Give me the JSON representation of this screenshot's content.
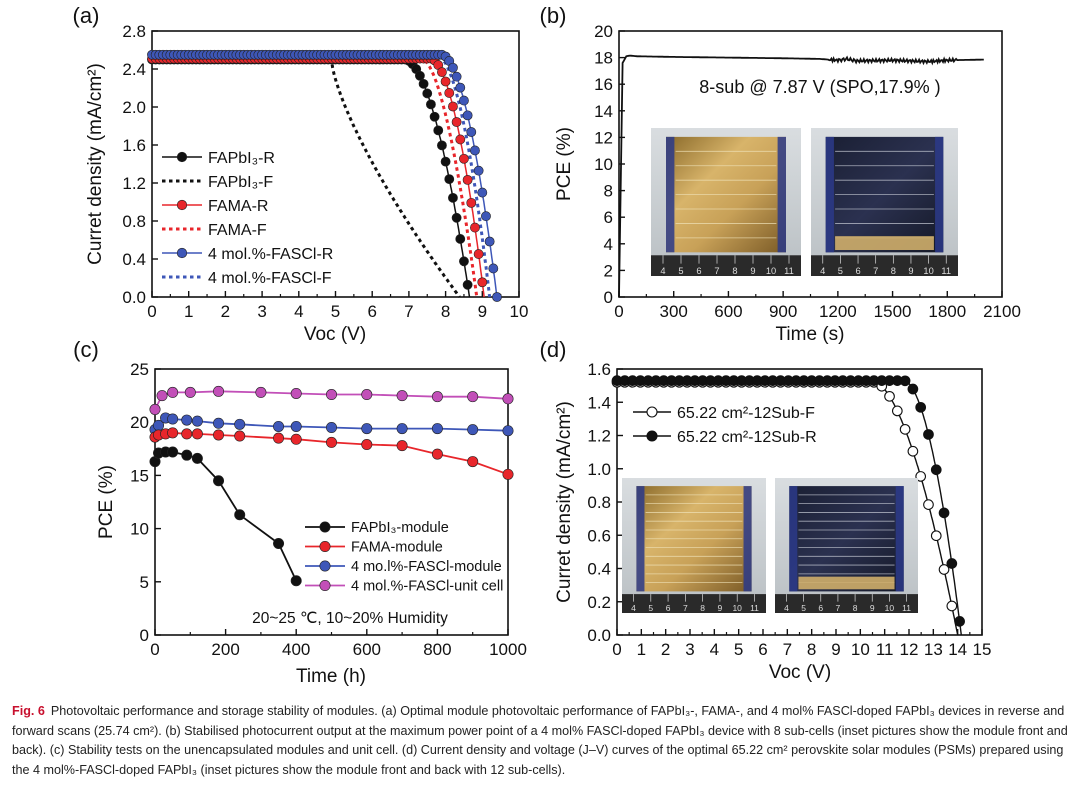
{
  "colors": {
    "black": "#111111",
    "red": "#e8262b",
    "blue": "#3e57b8",
    "magenta": "#c24fb8",
    "caption_label": "#c8102e"
  },
  "chart_data": [
    {
      "panel_label": "(a)",
      "type": "line",
      "xlabel": "Voc (V)",
      "ylabel": "Curret density (mA/cm²)",
      "xlim": [
        0,
        10
      ],
      "ylim": [
        0,
        2.8
      ],
      "xticks": [
        "0",
        "1",
        "2",
        "3",
        "4",
        "5",
        "6",
        "7",
        "8",
        "9",
        "10"
      ],
      "yticks": [
        "0.0",
        "0.4",
        "0.8",
        "1.2",
        "1.6",
        "2.0",
        "2.4",
        "2.8"
      ],
      "legend_position": "center-left",
      "series": [
        {
          "name": "FAPbI₃-R",
          "color": "black",
          "style": "line-marker",
          "Jsc": 2.5,
          "Voc": 8.65,
          "vk": 6.9,
          "n": 0.55
        },
        {
          "name": "FAPbI₃-F",
          "color": "black",
          "style": "dotted",
          "Jsc": 2.47,
          "Voc": 8.38,
          "vk": 4.9,
          "n": 1.35
        },
        {
          "name": "FAMA-R",
          "color": "red",
          "style": "line-marker",
          "Jsc": 2.51,
          "Voc": 9.05,
          "vk": 7.6,
          "n": 0.55
        },
        {
          "name": "FAMA-F",
          "color": "red",
          "style": "dotted",
          "Jsc": 2.49,
          "Voc": 8.85,
          "vk": 7.4,
          "n": 0.6
        },
        {
          "name": "4 mol.%-FASCl-R",
          "color": "blue",
          "style": "line-marker",
          "Jsc": 2.55,
          "Voc": 9.4,
          "vk": 7.9,
          "n": 0.55
        },
        {
          "name": "4 mol.%-FASCl-F",
          "color": "blue",
          "style": "dotted",
          "Jsc": 2.53,
          "Voc": 9.2,
          "vk": 7.8,
          "n": 0.55
        }
      ]
    },
    {
      "panel_label": "(b)",
      "type": "line",
      "xlabel": "Time (s)",
      "ylabel": "PCE (%)",
      "xlim": [
        0,
        2100
      ],
      "ylim": [
        0,
        20
      ],
      "xticks": [
        "0",
        "300",
        "600",
        "900",
        "1200",
        "1500",
        "1800",
        "2100"
      ],
      "yticks": [
        "0",
        "2",
        "4",
        "6",
        "8",
        "10",
        "12",
        "14",
        "16",
        "18",
        "20"
      ],
      "annotation": "8-sub @ 7.87 V (SPO,17.9% )",
      "series": [
        {
          "color": "black",
          "x": [
            0,
            20,
            40,
            60,
            100,
            300,
            600,
            900,
            1100,
            1200,
            1250,
            1300,
            1500,
            1700,
            1800,
            2000
          ],
          "values": [
            0,
            17.6,
            18.1,
            18.15,
            18.1,
            18.05,
            18.0,
            17.95,
            17.9,
            17.8,
            17.9,
            17.75,
            17.8,
            17.7,
            17.8,
            17.85
          ]
        }
      ]
    },
    {
      "panel_label": "(c)",
      "type": "line",
      "xlabel": "Time (h)",
      "ylabel": "PCE (%)",
      "xlim": [
        0,
        1000
      ],
      "ylim": [
        0,
        25
      ],
      "xticks": [
        "0",
        "200",
        "400",
        "600",
        "800",
        "1000"
      ],
      "yticks": [
        "0",
        "5",
        "10",
        "15",
        "20",
        "25"
      ],
      "annotation": "20~25 ℃, 10~20% Humidity",
      "legend_position": "center-right",
      "series": [
        {
          "name": "FAPbI₃-module",
          "color": "black",
          "x": [
            0,
            10,
            30,
            50,
            90,
            120,
            180,
            240,
            350,
            400
          ],
          "values": [
            16.3,
            17.1,
            17.2,
            17.2,
            16.9,
            16.6,
            14.5,
            11.3,
            8.6,
            5.1
          ]
        },
        {
          "name": "FAMA-module",
          "color": "red",
          "x": [
            0,
            10,
            30,
            50,
            90,
            120,
            180,
            240,
            350,
            400,
            500,
            600,
            700,
            800,
            900,
            1000
          ],
          "values": [
            18.6,
            18.8,
            18.9,
            19.0,
            18.9,
            18.9,
            18.8,
            18.7,
            18.5,
            18.4,
            18.1,
            17.9,
            17.8,
            17.0,
            16.3,
            15.1
          ]
        },
        {
          "name": "4 mo.l%-FASCl-module",
          "color": "blue",
          "x": [
            0,
            10,
            30,
            50,
            90,
            120,
            180,
            240,
            350,
            400,
            500,
            600,
            700,
            800,
            900,
            1000
          ],
          "values": [
            19.3,
            19.7,
            20.4,
            20.3,
            20.2,
            20.1,
            19.9,
            19.8,
            19.6,
            19.6,
            19.5,
            19.4,
            19.4,
            19.4,
            19.3,
            19.2
          ]
        },
        {
          "name": "4 mol.%-FASCl-unit cell",
          "color": "magenta",
          "x": [
            0,
            20,
            50,
            100,
            180,
            300,
            400,
            500,
            600,
            700,
            800,
            900,
            1000
          ],
          "values": [
            21.2,
            22.5,
            22.8,
            22.8,
            22.9,
            22.8,
            22.7,
            22.6,
            22.6,
            22.5,
            22.4,
            22.4,
            22.2
          ]
        }
      ]
    },
    {
      "panel_label": "(d)",
      "type": "line",
      "xlabel": "Voc (V)",
      "ylabel": "Curret density (mA/cm²)",
      "xlim": [
        0,
        15
      ],
      "ylim": [
        0,
        1.6
      ],
      "xticks": [
        "0",
        "1",
        "2",
        "3",
        "4",
        "5",
        "6",
        "7",
        "8",
        "9",
        "10",
        "11",
        "12",
        "13",
        "14",
        "15"
      ],
      "yticks": [
        "0.0",
        "0.2",
        "0.4",
        "0.6",
        "0.8",
        "1.0",
        "1.2",
        "1.4",
        "1.6"
      ],
      "legend_position": "top-right",
      "series": [
        {
          "name": "65.22 cm²-12Sub-F",
          "color": "black",
          "marker": "open",
          "Jsc": 1.52,
          "Voc": 14.0,
          "vk": 10.6,
          "n": 0.6
        },
        {
          "name": "65.22 cm²-12Sub-R",
          "color": "black",
          "marker": "filled",
          "Jsc": 1.53,
          "Voc": 14.15,
          "vk": 11.8,
          "n": 0.55
        }
      ]
    }
  ],
  "caption": {
    "label": "Fig. 6",
    "text": "Photovoltaic performance and storage stability of modules. (a) Optimal module photovoltaic performance of FAPbI₃-, FAMA-, and 4 mol% FASCl-doped FAPbI₃ devices in reverse and forward scans (25.74 cm²). (b) Stabilised photocurrent output at the maximum power point of a 4 mol% FASCl-doped FAPbI₃ device with 8 sub-cells (inset pictures show the module front and back). (c) Stability tests on the unencapsulated modules and unit cell. (d) Current density and voltage (J–V) curves of the optimal 65.22 cm² perovskite solar modules (PSMs) prepared using the 4 mol%-FASCl-doped FAPbI₃ (inset pictures show the module front and back with 12 sub-cells)."
  },
  "insets": {
    "b_front": "module-front-photo",
    "b_back": "module-back-photo",
    "d_front": "module-front-photo",
    "d_back": "module-back-photo",
    "ruler_ticks": [
      "4",
      "5",
      "6",
      "7",
      "8",
      "9",
      "10",
      "11"
    ]
  }
}
